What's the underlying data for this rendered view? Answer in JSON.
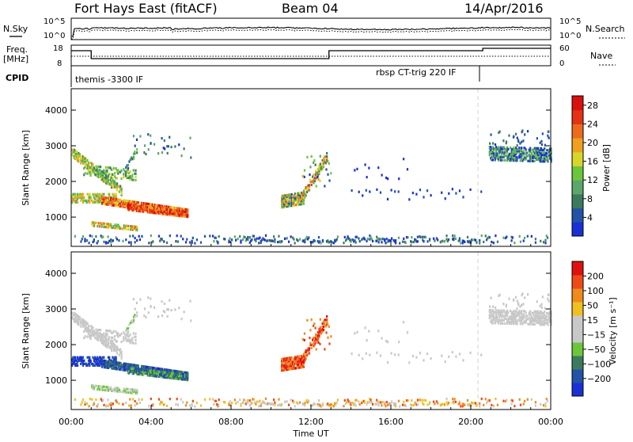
{
  "header": {
    "station": "Fort Hays East (fitACF)",
    "beam": "Beam 04",
    "date": "14/Apr/2016"
  },
  "top_panels": {
    "nsky_label": "N.Sky",
    "nsearch_label": "N.Search",
    "freq_label": "Freq.",
    "freq_unit": "[MHz]",
    "nave_label": "Nave",
    "cpid_label": "CPID",
    "left_ticks_noise": [
      "10^5",
      "10^0"
    ],
    "right_ticks_noise": [
      "10^5",
      "10^0"
    ],
    "left_ticks_freq": [
      "18",
      "8"
    ],
    "right_ticks_freq": [
      "60",
      "0"
    ],
    "cpid_segments": [
      {
        "label": "themis -3300 IF",
        "start": 0,
        "end": 20.6
      },
      {
        "label": "rbsp CT-trig 220 IF",
        "start": 20.6,
        "end": 24
      }
    ]
  },
  "chart_data": [
    {
      "type": "heatmap",
      "name_panel": "power",
      "ylabel": "Slant Range [km]",
      "xlabel": "Time UT",
      "yticks": [
        "1000",
        "2000",
        "3000",
        "4000"
      ],
      "ylim": [
        180,
        4600
      ],
      "xlim": [
        0,
        24
      ],
      "colorbar": {
        "label": "Power [dB]",
        "ticks": [
          "4",
          "8",
          "12",
          "16",
          "20",
          "24",
          "28"
        ],
        "colors": [
          "#1a2fd6",
          "#2153a6",
          "#3c7a5e",
          "#5ca66a",
          "#6cc63b",
          "#d8d52a",
          "#f0a020",
          "#ee6a1b",
          "#e53115",
          "#d91010"
        ]
      },
      "echo_regions": [
        {
          "t0": 0.0,
          "t1": 2.5,
          "r0": 1500,
          "r1": 3000,
          "desc": "descending band"
        },
        {
          "t0": 1.5,
          "t1": 5.8,
          "r0": 950,
          "r1": 1600,
          "desc": "strong echoes"
        },
        {
          "t0": 1.0,
          "t1": 3.3,
          "r0": 600,
          "r1": 850,
          "desc": "low band"
        },
        {
          "t0": 10.5,
          "t1": 12.8,
          "r0": 1100,
          "r1": 2900,
          "desc": "midday patch"
        },
        {
          "t0": 20.9,
          "t1": 24.0,
          "r0": 2400,
          "r1": 3300,
          "desc": "late band"
        },
        {
          "t0": 0.0,
          "t1": 24.0,
          "r0": 180,
          "r1": 500,
          "desc": "ground scatter band"
        }
      ]
    },
    {
      "type": "heatmap",
      "name_panel": "velocity",
      "ylabel": "Slant Range [km]",
      "xlabel": "Time UT",
      "yticks": [
        "1000",
        "2000",
        "3000",
        "4000"
      ],
      "ylim": [
        180,
        4600
      ],
      "xlim": [
        0,
        24
      ],
      "xticks": [
        "00:00",
        "04:00",
        "08:00",
        "12:00",
        "16:00",
        "20:00",
        "00:00"
      ],
      "colorbar": {
        "label": "Velocity [m s⁻¹]",
        "ticks": [
          "200",
          "100",
          "50",
          "15",
          "−15",
          "−50",
          "−100",
          "−200"
        ],
        "colors": [
          "#1a2fd6",
          "#2153a6",
          "#3c7a5e",
          "#6cc63b",
          "#c8c8c8",
          "#c8c8c8",
          "#f0c020",
          "#f08a1d",
          "#ee4a18",
          "#e01010"
        ]
      }
    }
  ]
}
